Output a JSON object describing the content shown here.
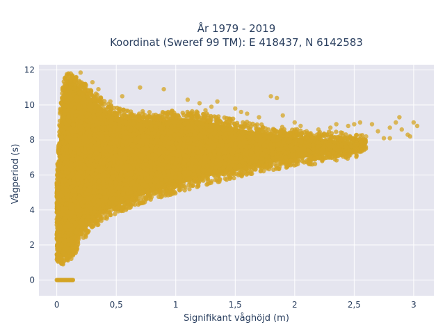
{
  "chart_data": {
    "type": "scatter",
    "title": "År 1979 - 2019",
    "subtitle": "Koordinat (Sweref 99 TM): E 418437, N 6142583",
    "xlabel": "Signifikant våghöjd (m)",
    "ylabel": "Vågperiod (s)",
    "xlim": [
      -0.15,
      3.17
    ],
    "ylim": [
      -0.9,
      12.3
    ],
    "x_ticks": [
      0,
      0.5,
      1,
      1.5,
      2,
      2.5,
      3
    ],
    "x_tick_labels": [
      "0",
      "0,5",
      "1",
      "1,5",
      "2",
      "2,5",
      "3"
    ],
    "y_ticks": [
      0,
      2,
      4,
      6,
      8,
      10,
      12
    ],
    "y_tick_labels": [
      "0",
      "2",
      "4",
      "6",
      "8",
      "10",
      "12"
    ],
    "grid": true,
    "legend": "none",
    "marker_color": "#d4a423",
    "plot_background": "#e5e5ef",
    "density_envelope": {
      "description": "Dense cloud of many thousand points; lower and upper limit of wave period as function of wave height",
      "x": [
        0.0,
        0.03,
        0.05,
        0.08,
        0.1,
        0.13,
        0.15,
        0.2,
        0.3,
        0.4,
        0.5,
        0.6,
        0.7,
        0.8,
        0.9,
        1.0,
        1.2,
        1.4,
        1.6,
        1.8,
        2.0,
        2.2,
        2.4,
        2.6
      ],
      "y_low": [
        1.4,
        1.1,
        1.1,
        1.1,
        1.2,
        1.3,
        1.6,
        2.4,
        3.1,
        3.7,
        4.0,
        4.3,
        4.6,
        4.8,
        5.0,
        5.2,
        5.6,
        5.9,
        6.2,
        6.5,
        6.7,
        6.9,
        7.1,
        7.4
      ],
      "y_high": [
        5.5,
        9.8,
        11.0,
        11.5,
        11.7,
        11.8,
        11.4,
        11.2,
        10.6,
        10.0,
        9.6,
        9.5,
        9.4,
        9.4,
        9.4,
        9.5,
        9.4,
        9.1,
        8.8,
        8.6,
        8.4,
        8.3,
        8.2,
        8.0
      ]
    },
    "zero_period_cluster": {
      "x_from": 0.0,
      "x_to": 0.14,
      "y": 0
    },
    "outliers": [
      {
        "x": 0.2,
        "y": 11.85
      },
      {
        "x": 0.3,
        "y": 11.3
      },
      {
        "x": 0.35,
        "y": 10.9
      },
      {
        "x": 0.7,
        "y": 11.0
      },
      {
        "x": 0.9,
        "y": 10.9
      },
      {
        "x": 0.45,
        "y": 10.2
      },
      {
        "x": 0.55,
        "y": 10.5
      },
      {
        "x": 1.1,
        "y": 10.3
      },
      {
        "x": 1.2,
        "y": 10.1
      },
      {
        "x": 1.3,
        "y": 9.9
      },
      {
        "x": 1.35,
        "y": 10.2
      },
      {
        "x": 1.25,
        "y": 9.7
      },
      {
        "x": 1.5,
        "y": 9.8
      },
      {
        "x": 1.55,
        "y": 9.6
      },
      {
        "x": 1.6,
        "y": 9.5
      },
      {
        "x": 1.8,
        "y": 10.5
      },
      {
        "x": 1.85,
        "y": 10.4
      },
      {
        "x": 1.7,
        "y": 9.3
      },
      {
        "x": 1.9,
        "y": 9.4
      },
      {
        "x": 2.0,
        "y": 9.0
      },
      {
        "x": 2.05,
        "y": 8.8
      },
      {
        "x": 2.1,
        "y": 8.5
      },
      {
        "x": 2.2,
        "y": 8.6
      },
      {
        "x": 2.3,
        "y": 8.7
      },
      {
        "x": 2.35,
        "y": 8.9
      },
      {
        "x": 2.4,
        "y": 8.4
      },
      {
        "x": 2.45,
        "y": 8.8
      },
      {
        "x": 2.5,
        "y": 8.9
      },
      {
        "x": 2.55,
        "y": 9.0
      },
      {
        "x": 2.6,
        "y": 8.2
      },
      {
        "x": 2.65,
        "y": 8.9
      },
      {
        "x": 2.7,
        "y": 8.5
      },
      {
        "x": 2.75,
        "y": 8.1
      },
      {
        "x": 2.8,
        "y": 8.7
      },
      {
        "x": 2.85,
        "y": 9.0
      },
      {
        "x": 2.88,
        "y": 9.3
      },
      {
        "x": 2.9,
        "y": 8.6
      },
      {
        "x": 2.95,
        "y": 8.3
      },
      {
        "x": 3.0,
        "y": 9.0
      },
      {
        "x": 3.03,
        "y": 8.8
      },
      {
        "x": 2.97,
        "y": 8.2
      },
      {
        "x": 2.8,
        "y": 8.1
      }
    ]
  }
}
